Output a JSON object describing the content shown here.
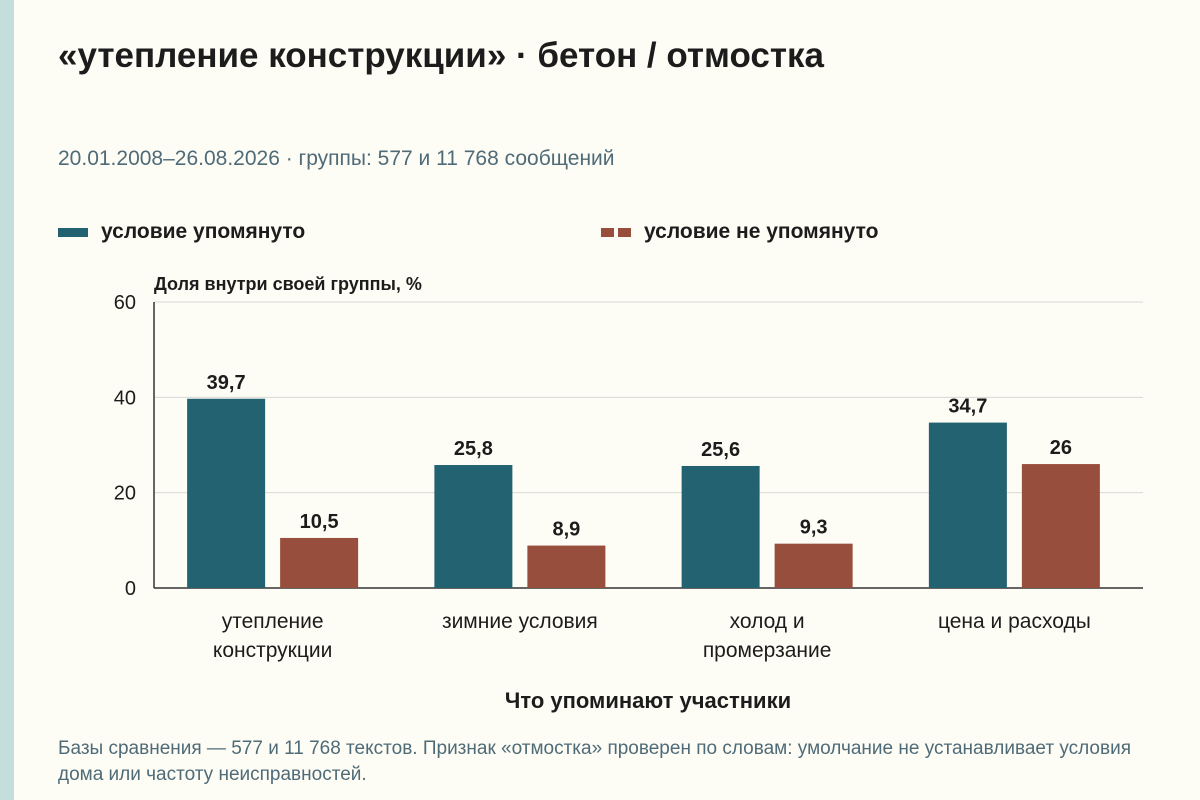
{
  "title": "«утепление конструкции» · бетон / отмостка",
  "subtitle": "20.01.2008–26.08.2026 · группы: 577 и 11 768 сообщений",
  "footnote": "Базы сравнения — 577 и 11 768 текстов. Признак «отмостка» проверен по словам: умолчание не устанавливает условия дома или частоту неисправностей.",
  "colors": {
    "series_a": "#236270",
    "series_b": "#984e3c",
    "grid": "#d9d9d9",
    "axis": "#333333"
  },
  "chart_data": {
    "type": "bar",
    "categories": [
      [
        "утепление",
        "конструкции"
      ],
      [
        "зимние условия"
      ],
      [
        "холод и",
        "промерзание"
      ],
      [
        "цена и расходы"
      ]
    ],
    "series": [
      {
        "name": "условие упомянуто",
        "values": [
          39.7,
          25.8,
          25.6,
          34.7
        ],
        "value_labels": [
          "39,7",
          "25,8",
          "25,6",
          "34,7"
        ]
      },
      {
        "name": "условие не упомянуто",
        "values": [
          10.5,
          8.9,
          9.3,
          26
        ],
        "value_labels": [
          "10,5",
          "8,9",
          "9,3",
          "26"
        ]
      }
    ],
    "ylabel": "Доля внутри своей группы, %",
    "xlabel": "Что упоминают участники",
    "ylim": [
      0,
      60
    ],
    "yticks": [
      0,
      20,
      40,
      60
    ],
    "grid": true,
    "legend_position": "top"
  }
}
